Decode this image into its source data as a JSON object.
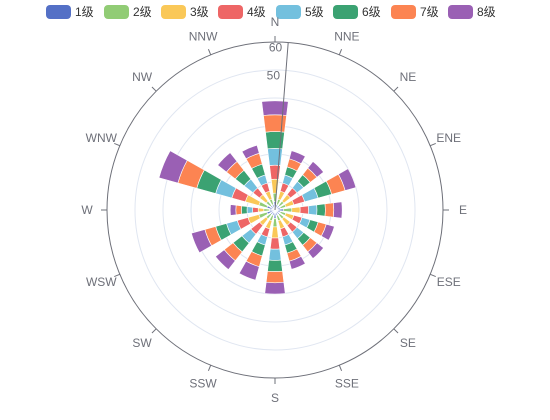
{
  "chart_data": {
    "type": "polar-stacked-bar",
    "angle_categories": [
      "N",
      "NNE",
      "NE",
      "ENE",
      "E",
      "ESE",
      "SE",
      "SSE",
      "S",
      "SSW",
      "SW",
      "WSW",
      "W",
      "WNW",
      "NW",
      "NNW"
    ],
    "radial_ticks": [
      "60",
      "50"
    ],
    "radial_max": 60,
    "series": [
      {
        "name": "1级",
        "color": "#5470c6",
        "values": [
          3,
          2,
          2,
          2,
          3,
          2,
          2,
          2,
          3,
          2,
          2,
          3,
          2,
          3,
          2,
          2
        ]
      },
      {
        "name": "2级",
        "color": "#91cc75",
        "values": [
          3,
          2,
          2,
          2,
          3,
          2,
          2,
          2,
          3,
          2,
          2,
          3,
          2,
          3,
          2,
          2
        ]
      },
      {
        "name": "3级",
        "color": "#fac858",
        "values": [
          5,
          3,
          3,
          3,
          3,
          3,
          3,
          3,
          4,
          3,
          3,
          4,
          2,
          5,
          3,
          3
        ]
      },
      {
        "name": "4级",
        "color": "#ee6666",
        "values": [
          5,
          3,
          3,
          4,
          3,
          3,
          3,
          3,
          4,
          3,
          4,
          4,
          2,
          5,
          3,
          3
        ]
      },
      {
        "name": "5级",
        "color": "#73c0de",
        "values": [
          6,
          3,
          3,
          5,
          3,
          3,
          3,
          3,
          4,
          3,
          4,
          4,
          2,
          6,
          4,
          3
        ]
      },
      {
        "name": "6级",
        "color": "#3ba272",
        "values": [
          6,
          3,
          3,
          5,
          3,
          3,
          3,
          3,
          4,
          4,
          4,
          4,
          2,
          7,
          4,
          4
        ]
      },
      {
        "name": "7级",
        "color": "#fc8452",
        "values": [
          6,
          3,
          3,
          5,
          3,
          3,
          3,
          3,
          4,
          4,
          4,
          4,
          2,
          7,
          4,
          4
        ]
      },
      {
        "name": "8级",
        "color": "#9a60b4",
        "values": [
          5,
          3,
          3,
          4,
          3,
          3,
          3,
          3,
          4,
          5,
          4,
          5,
          2,
          7,
          4,
          3
        ]
      }
    ]
  }
}
